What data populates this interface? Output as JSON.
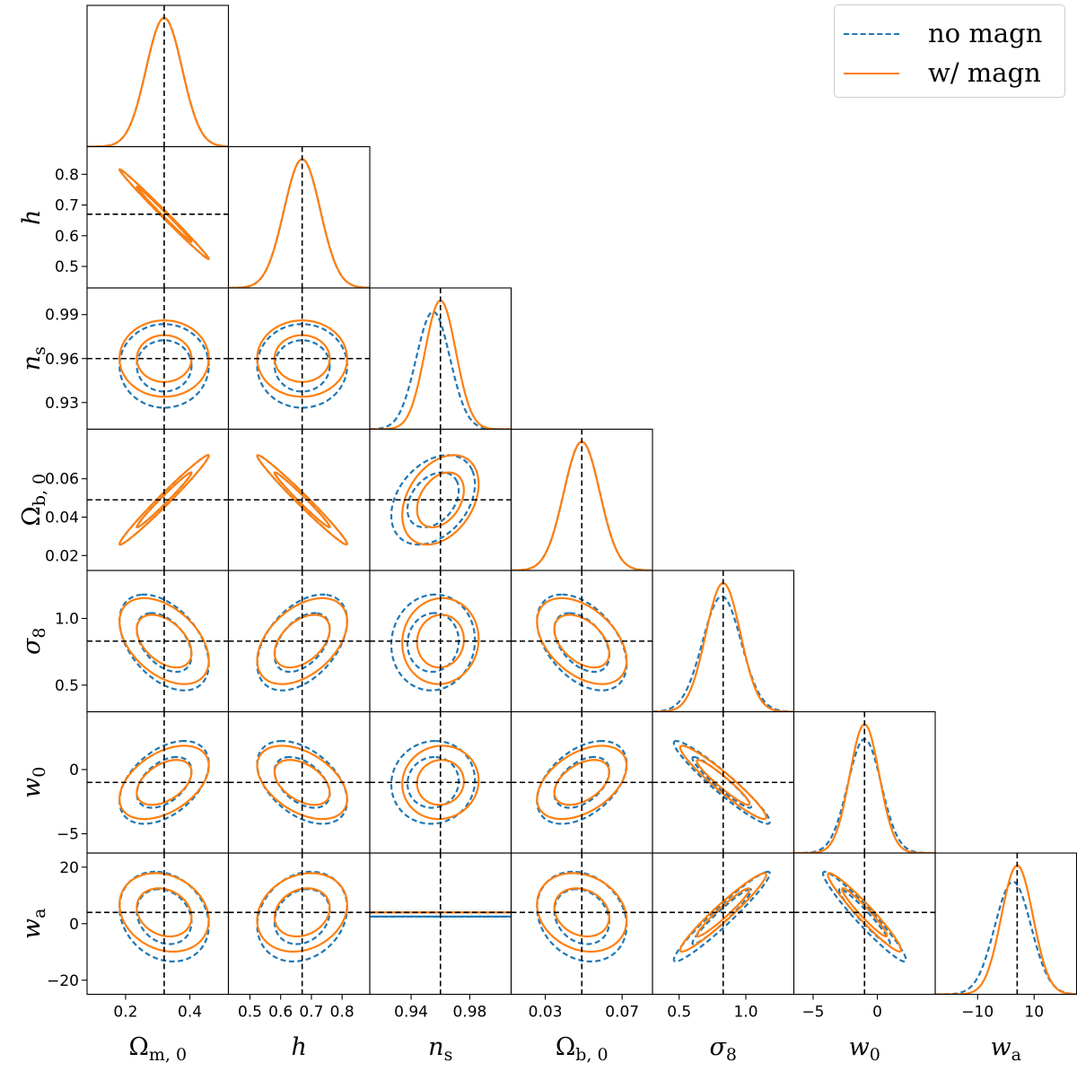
{
  "chart_data": {
    "type": "corner",
    "params": [
      {
        "key": "Om",
        "label_main": "Ω",
        "label_sub": "m, 0",
        "fiducial": 0.32,
        "lim": [
          0.08,
          0.52
        ],
        "ticks": [
          0.2,
          0.4
        ],
        "tick_labels": [
          "0.2",
          "0.4"
        ]
      },
      {
        "key": "h",
        "label_main": "h",
        "label_sub": "",
        "fiducial": 0.67,
        "lim": [
          0.43,
          0.89
        ],
        "ticks": [
          0.5,
          0.6,
          0.7,
          0.8
        ],
        "tick_labels": [
          "0.5",
          "0.6",
          "0.7",
          "0.8"
        ]
      },
      {
        "key": "ns",
        "label_main": "n",
        "label_sub": "s",
        "fiducial": 0.96,
        "lim": [
          0.9118,
          1.0082
        ],
        "ticks": [
          0.94,
          0.98
        ],
        "tick_labels": [
          "0.94",
          "0.98"
        ],
        "ytick_values": [
          0.93,
          0.96,
          0.99
        ],
        "ytick_labels": [
          "0.93",
          "0.96",
          "0.99"
        ]
      },
      {
        "key": "Ob",
        "label_main": "Ω",
        "label_sub": "b, 0",
        "fiducial": 0.049,
        "lim": [
          0.0122,
          0.0858
        ],
        "ticks": [
          0.03,
          0.07
        ],
        "tick_labels": [
          "0.03",
          "0.07"
        ],
        "ytick_values": [
          0.02,
          0.04,
          0.06
        ],
        "ytick_labels": [
          "0.02",
          "0.04",
          "0.06"
        ]
      },
      {
        "key": "s8",
        "label_main": "σ",
        "label_sub": "8",
        "fiducial": 0.83,
        "lim": [
          0.3,
          1.36
        ],
        "ticks": [
          0.5,
          1.0
        ],
        "tick_labels": [
          "0.5",
          "1.0"
        ]
      },
      {
        "key": "w0",
        "label_main": "w",
        "label_sub": "0",
        "fiducial": -1.0,
        "lim": [
          -6.5,
          4.5
        ],
        "ticks": [
          -5,
          0
        ],
        "tick_labels": [
          "−5",
          "0"
        ]
      },
      {
        "key": "wa",
        "label_main": "w",
        "label_sub": "a",
        "fiducial": 4.0,
        "lim": [
          -25,
          25
        ],
        "ticks": [
          -10,
          10
        ],
        "tick_labels": [
          "−10",
          "10"
        ],
        "ytick_values": [
          -20,
          0,
          20
        ],
        "ytick_labels": [
          "−20",
          "0",
          "20"
        ]
      }
    ],
    "series": [
      {
        "name": "no magn",
        "color": "#1f77b4",
        "dash": "dashed",
        "centers": [
          0.32,
          0.67,
          0.955,
          0.049,
          0.82,
          -1.0,
          2.5
        ],
        "sigmas": [
          0.056,
          0.059,
          0.0115,
          0.0094,
          0.145,
          1.3,
          6.4
        ]
      },
      {
        "name": "w/ magn",
        "color": "#ff7f0e",
        "dash": "solid",
        "centers": [
          0.32,
          0.67,
          0.96,
          0.049,
          0.83,
          -1.0,
          4.0
        ],
        "sigmas": [
          0.056,
          0.059,
          0.0105,
          0.0094,
          0.13,
          1.15,
          5.6
        ]
      }
    ],
    "correlations": [
      [
        1,
        -0.995,
        0.0,
        0.985,
        -0.45,
        0.45,
        -0.2
      ],
      [
        -0.995,
        1,
        0.0,
        -0.985,
        0.45,
        -0.45,
        0.2
      ],
      [
        0.0,
        0.0,
        1,
        0.35,
        0.05,
        0.05,
        0.0
      ],
      [
        0.985,
        -0.985,
        0.35,
        1,
        -0.45,
        0.45,
        -0.2
      ],
      [
        -0.45,
        0.45,
        0.05,
        -0.45,
        1,
        -0.95,
        0.96
      ],
      [
        0.45,
        -0.45,
        0.05,
        0.45,
        -0.95,
        1,
        -0.96
      ],
      [
        -0.2,
        0.2,
        0.0,
        -0.2,
        0.96,
        -0.96,
        1
      ]
    ],
    "contour_levels_sigma": [
      1.52,
      2.48
    ],
    "fiducial_line_color": "#000000",
    "legend_position": "top-right"
  },
  "legend": {
    "entries": [
      {
        "label": "no magn"
      },
      {
        "label": "w/ magn"
      }
    ]
  }
}
